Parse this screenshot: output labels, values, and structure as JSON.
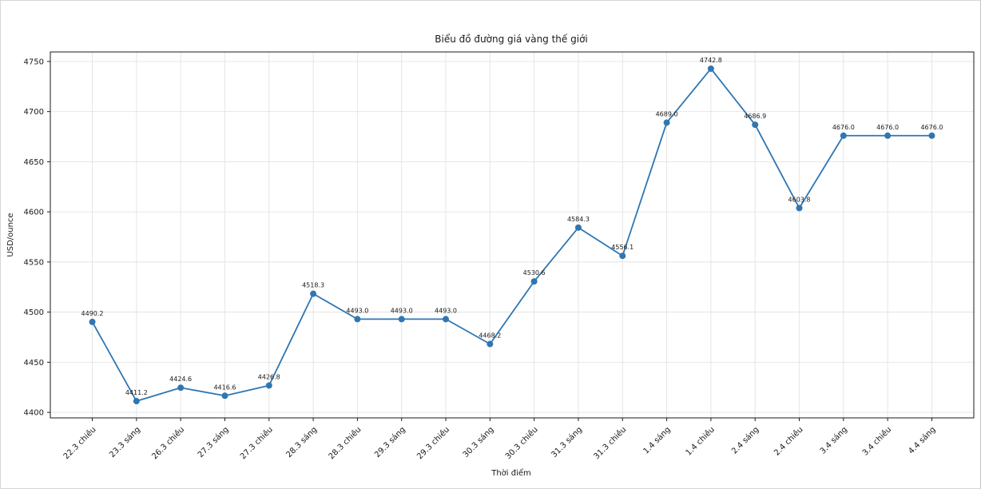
{
  "chart_data": {
    "type": "line",
    "title": "Biểu đồ đường giá vàng thế giới",
    "xlabel": "Thời điểm",
    "ylabel": "USD/ounce",
    "categories": [
      "22.3 chiều",
      "23.3 sáng",
      "26.3 chiều",
      "27.3 sáng",
      "27.3 chiều",
      "28.3 sáng",
      "28.3 chiều",
      "29.3 sáng",
      "29.3 chiều",
      "30.3 sáng",
      "30.3 chiều",
      "31.3 sáng",
      "31.3 chiều",
      "1.4 sáng",
      "1.4 chiều",
      "2.4 sáng",
      "2.4 chiều",
      "3.4 sáng",
      "3.4 chiều",
      "4.4 sáng"
    ],
    "values": [
      4490.2,
      4411.2,
      4424.6,
      4416.6,
      4426.8,
      4518.3,
      4493.0,
      4493.0,
      4493.0,
      4468.2,
      4530.6,
      4584.3,
      4556.1,
      4689.0,
      4742.8,
      4686.9,
      4603.8,
      4676.0,
      4676.0,
      4676.0
    ],
    "point_labels": [
      "4490.2",
      "4411.2",
      "4424.6",
      "4416.6",
      "4426.8",
      "4518.3",
      "4493.0",
      "4493.0",
      "4493.0",
      "4468.2",
      "4530.6",
      "4584.3",
      "4556.1",
      "4689.0",
      "4742.8",
      "4686.9",
      "4603.8",
      "4676.0",
      "4676.0",
      "4676.0"
    ],
    "yticks": [
      4400,
      4450,
      4500,
      4550,
      4600,
      4650,
      4700,
      4750
    ],
    "ylim": [
      4394.5,
      4759.5
    ],
    "grid": true,
    "legend_position": "none",
    "line_color": "#2f76b2",
    "marker_color": "#2f76b2",
    "grid_color": "#e3e3e3",
    "spine_color": "#1a1a1a",
    "marker_shape": "circle"
  }
}
